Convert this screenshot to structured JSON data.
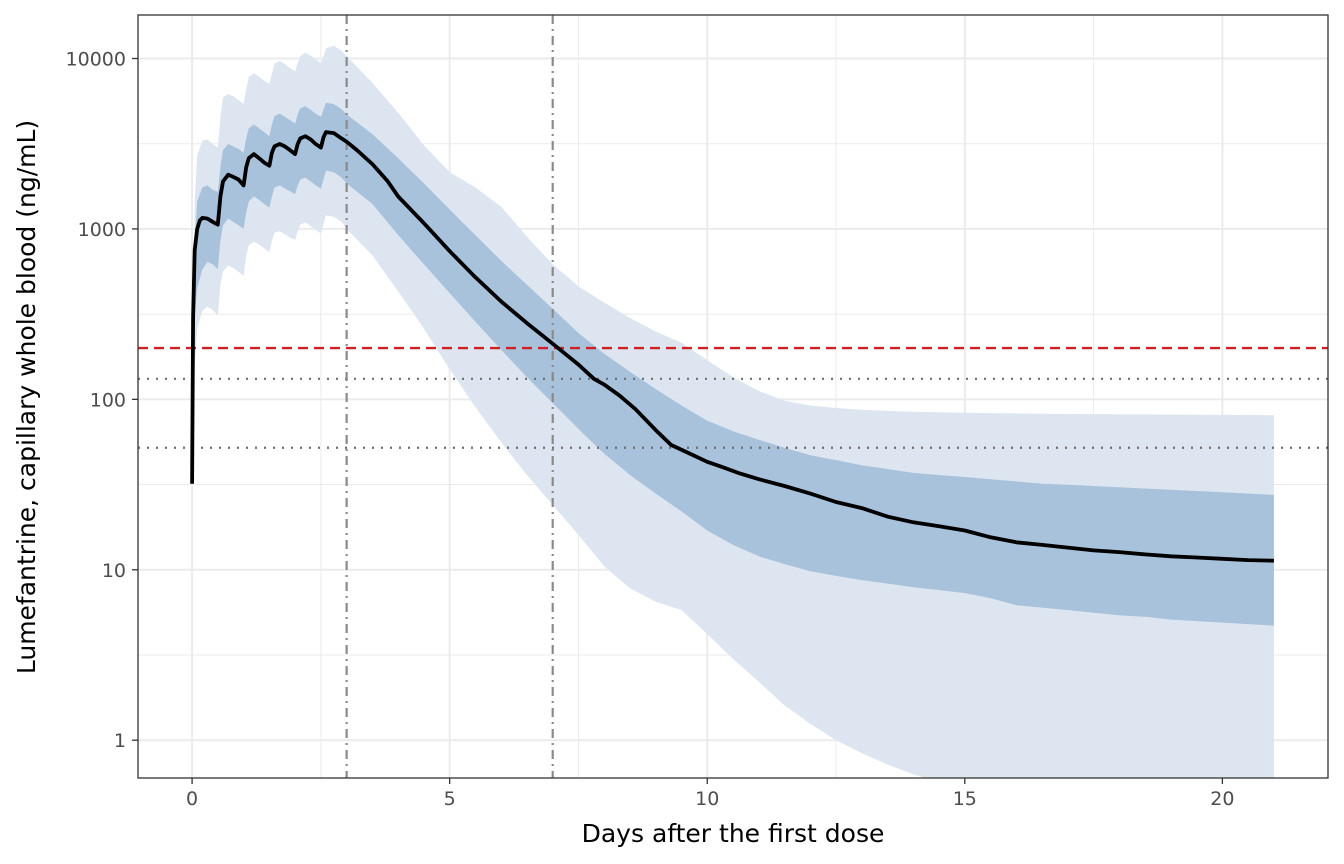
{
  "chart_data": {
    "type": "line",
    "xlabel": "Days after the first dose",
    "ylabel": "Lumefantrine, capillary whole blood (ng/mL)",
    "x_scale": "linear",
    "y_scale": "log10",
    "xlim": [
      -1.05,
      22.05
    ],
    "ylim": [
      0.6,
      18000
    ],
    "x_ticks": [
      0,
      5,
      10,
      15,
      20
    ],
    "x_tick_labels": [
      "0",
      "5",
      "10",
      "15",
      "20"
    ],
    "y_ticks": [
      1,
      10,
      100,
      1000,
      10000
    ],
    "y_tick_labels": [
      "1",
      "10",
      "100",
      "1000",
      "10000"
    ],
    "grid": true,
    "legend": "none",
    "colors": {
      "median": "#000000",
      "inner_band": "#a9c2dc",
      "outer_band": "#dde6f0",
      "threshold_red": "#cc2222",
      "reference_dotted": "#6e6e6e",
      "vertical_reference": "#8a8a8a",
      "grid": "#ebebeb"
    },
    "median": {
      "x": [
        0,
        0.02,
        0.05,
        0.1,
        0.15,
        0.2,
        0.3,
        0.4,
        0.5,
        0.55,
        0.6,
        0.7,
        0.8,
        0.9,
        1.0,
        1.05,
        1.1,
        1.2,
        1.3,
        1.4,
        1.5,
        1.55,
        1.6,
        1.7,
        1.8,
        1.9,
        2.0,
        2.05,
        2.1,
        2.2,
        2.3,
        2.4,
        2.5,
        2.55,
        2.6,
        2.75,
        2.9,
        3.0,
        3.2,
        3.5,
        3.8,
        4.0,
        4.5,
        5.0,
        5.5,
        6.0,
        6.5,
        7.0,
        7.5,
        7.8,
        8.0,
        8.3,
        8.6,
        9.0,
        9.3,
        9.6,
        10.0,
        10.3,
        10.6,
        11.0,
        11.5,
        12.0,
        12.5,
        13.0,
        13.5,
        14.0,
        14.5,
        15.0,
        15.5,
        16.0,
        16.5,
        17.0,
        17.5,
        18.0,
        18.5,
        19.0,
        19.5,
        20.0,
        20.5,
        21.0
      ],
      "y": [
        32,
        300,
        750,
        1000,
        1120,
        1160,
        1150,
        1100,
        1060,
        1550,
        1900,
        2080,
        2020,
        1950,
        1800,
        2300,
        2600,
        2750,
        2600,
        2450,
        2350,
        2800,
        3050,
        3150,
        3050,
        2900,
        2750,
        3150,
        3400,
        3500,
        3350,
        3150,
        3000,
        3450,
        3700,
        3650,
        3400,
        3250,
        2900,
        2400,
        1900,
        1550,
        1080,
        740,
        520,
        375,
        280,
        212,
        160,
        132,
        122,
        105,
        88,
        66,
        54,
        49,
        43,
        40,
        37,
        34,
        31,
        28,
        25,
        23,
        20.5,
        19,
        18,
        17,
        15.5,
        14.5,
        14,
        13.5,
        13,
        12.7,
        12.3,
        12.0,
        11.8,
        11.6,
        11.4,
        11.3
      ]
    },
    "inner_band_x": [
      0,
      0.05,
      0.1,
      0.2,
      0.3,
      0.4,
      0.5,
      0.55,
      0.6,
      0.7,
      0.8,
      0.9,
      1.0,
      1.05,
      1.1,
      1.2,
      1.3,
      1.4,
      1.5,
      1.55,
      1.6,
      1.7,
      1.8,
      1.9,
      2.0,
      2.05,
      2.1,
      2.2,
      2.3,
      2.4,
      2.5,
      2.55,
      2.6,
      2.75,
      2.9,
      3.0,
      3.5,
      4.0,
      4.5,
      5.0,
      5.5,
      6.0,
      6.5,
      7.0,
      7.5,
      8.0,
      8.5,
      9.0,
      9.5,
      10.0,
      10.5,
      11.0,
      11.5,
      12.0,
      12.5,
      13.0,
      13.5,
      14.0,
      14.5,
      15.0,
      15.5,
      16.0,
      16.5,
      17.0,
      17.5,
      18.0,
      18.5,
      19.0,
      19.5,
      20.0,
      20.5,
      21.0
    ],
    "inner_upper": [
      32,
      850,
      1450,
      1750,
      1800,
      1700,
      1650,
      2300,
      2900,
      3150,
      3050,
      2950,
      2800,
      3400,
      3900,
      4100,
      3900,
      3700,
      3500,
      4100,
      4600,
      4750,
      4550,
      4350,
      4150,
      4700,
      5100,
      5250,
      5000,
      4750,
      4550,
      5000,
      5500,
      5400,
      5050,
      4700,
      3600,
      2600,
      1850,
      1300,
      920,
      650,
      470,
      340,
      245,
      185,
      145,
      115,
      92,
      75,
      65,
      58,
      52,
      47,
      44,
      41,
      39,
      37,
      36,
      35,
      34,
      33,
      32,
      31.5,
      31,
      30.5,
      30,
      29.5,
      29,
      28.5,
      28,
      27.5
    ],
    "inner_lower": [
      32,
      300,
      450,
      580,
      640,
      620,
      580,
      850,
      1050,
      1150,
      1100,
      1050,
      1000,
      1250,
      1450,
      1550,
      1480,
      1400,
      1330,
      1550,
      1750,
      1800,
      1730,
      1660,
      1600,
      1800,
      1950,
      2000,
      1900,
      1800,
      1720,
      1950,
      2200,
      2150,
      2000,
      1850,
      1400,
      920,
      620,
      420,
      285,
      195,
      135,
      95,
      67,
      48,
      36,
      28,
      22,
      17,
      14,
      12,
      10.8,
      9.8,
      9.2,
      8.7,
      8.3,
      7.9,
      7.6,
      7.3,
      6.8,
      6.2,
      6.0,
      5.8,
      5.6,
      5.4,
      5.3,
      5.1,
      5.0,
      4.9,
      4.8,
      4.7
    ],
    "outer_band_x": [
      0,
      0.05,
      0.1,
      0.2,
      0.3,
      0.4,
      0.5,
      0.55,
      0.6,
      0.7,
      0.8,
      0.9,
      1.0,
      1.05,
      1.1,
      1.2,
      1.3,
      1.4,
      1.5,
      1.55,
      1.6,
      1.7,
      1.8,
      1.9,
      2.0,
      2.05,
      2.1,
      2.2,
      2.3,
      2.4,
      2.5,
      2.55,
      2.6,
      2.75,
      2.9,
      3.0,
      3.5,
      4.0,
      4.5,
      5.0,
      5.5,
      6.0,
      6.5,
      7.0,
      7.5,
      8.0,
      8.5,
      9.0,
      9.5,
      10.0,
      10.5,
      11.0,
      11.5,
      12.0,
      12.5,
      13.0,
      13.5,
      14.0,
      14.5,
      15.0,
      15.5,
      16.0,
      16.5,
      17.0,
      17.5,
      18.0,
      18.5,
      19.0,
      19.5,
      20.0,
      20.5,
      21.0
    ],
    "outer_upper": [
      32,
      1450,
      2700,
      3300,
      3350,
      3150,
      3000,
      4500,
      5900,
      6200,
      6000,
      5700,
      5400,
      6600,
      7800,
      8200,
      7800,
      7400,
      7100,
      8200,
      9300,
      9700,
      9300,
      8800,
      8400,
      9400,
      10300,
      10800,
      10400,
      9900,
      9400,
      10300,
      11500,
      11900,
      11100,
      10300,
      7200,
      4800,
      3100,
      2150,
      1750,
      1350,
      900,
      620,
      460,
      370,
      300,
      250,
      215,
      170,
      135,
      112,
      98,
      92,
      89,
      87,
      85.5,
      84.5,
      84,
      83.5,
      83,
      82.7,
      82.4,
      82.2,
      82.0,
      81.8,
      81.6,
      81.4,
      81.2,
      81.0,
      80.9,
      80.8
    ],
    "outer_lower": [
      32,
      160,
      260,
      330,
      350,
      335,
      310,
      470,
      560,
      610,
      590,
      560,
      530,
      690,
      800,
      840,
      810,
      770,
      730,
      850,
      950,
      970,
      930,
      890,
      860,
      970,
      1060,
      1090,
      1040,
      990,
      940,
      1070,
      1200,
      1180,
      1100,
      1000,
      700,
      430,
      260,
      150,
      90,
      56,
      36,
      24,
      16,
      10.5,
      7.8,
      6.5,
      5.8,
      4.2,
      3.0,
      2.2,
      1.6,
      1.25,
      1.0,
      0.84,
      0.72,
      0.63,
      0.57,
      0.52,
      0.48,
      0.45,
      0.43,
      0.41,
      0.4,
      0.39,
      0.385,
      0.38,
      0.375,
      0.37,
      0.37,
      0.37
    ],
    "h_lines": [
      {
        "y": 200,
        "style": "dashed",
        "color": "#cc2222"
      },
      {
        "y": 132,
        "style": "dotted",
        "color": "#6e6e6e"
      },
      {
        "y": 52,
        "style": "dotted",
        "color": "#6e6e6e"
      }
    ],
    "v_lines": [
      {
        "x": 3,
        "style": "dashdot",
        "color": "#8a8a8a"
      },
      {
        "x": 7,
        "style": "dashdot",
        "color": "#8a8a8a"
      }
    ]
  }
}
